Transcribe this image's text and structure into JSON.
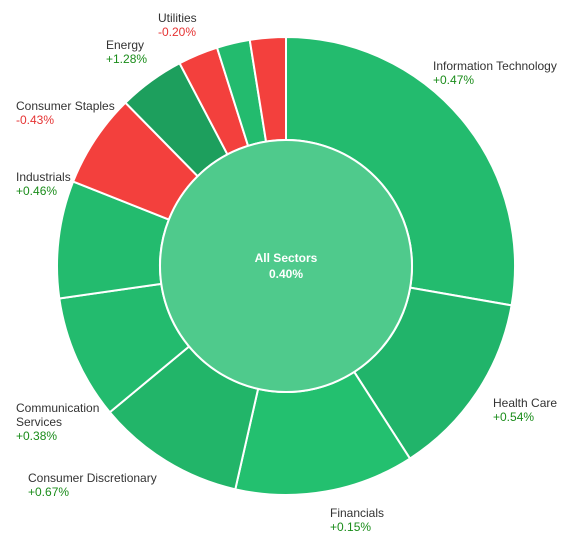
{
  "chart_data": {
    "type": "pie",
    "center": {
      "label": "All Sectors",
      "value": "0.40%",
      "color": "#4fca8c"
    },
    "colors": {
      "positive_text": "#1a8c1a",
      "negative_text": "#e53333"
    },
    "slices": [
      {
        "name": "Information Technology",
        "change": "+0.47%",
        "weight": 28.5,
        "color": "#23bb6e"
      },
      {
        "name": "Health Care",
        "change": "+0.54%",
        "weight": 13.5,
        "color": "#21b46a"
      },
      {
        "name": "Financials",
        "change": "+0.15%",
        "weight": 13.0,
        "color": "#23c06f"
      },
      {
        "name": "Consumer Discretionary",
        "change": "+0.67%",
        "weight": 10.7,
        "color": "#22b569"
      },
      {
        "name": "Communication Services",
        "change": "+0.38%",
        "weight": 9.0,
        "color": "#23bb6e"
      },
      {
        "name": "Industrials",
        "change": "+0.46%",
        "weight": 8.5,
        "color": "#23bb6e"
      },
      {
        "name": "Consumer Staples",
        "change": "-0.43%",
        "weight": 6.8,
        "color": "#f3403d"
      },
      {
        "name": "Energy",
        "change": "+1.28%",
        "weight": 4.8,
        "color": "#1d9f5d"
      },
      {
        "name": "",
        "change": "",
        "weight": 2.9,
        "color": "#f3403d"
      },
      {
        "name": "",
        "change": "",
        "weight": 2.4,
        "color": "#23bb6e"
      },
      {
        "name": "Utilities",
        "change": "-0.20%",
        "weight": 2.6,
        "color": "#f3403d"
      }
    ]
  }
}
